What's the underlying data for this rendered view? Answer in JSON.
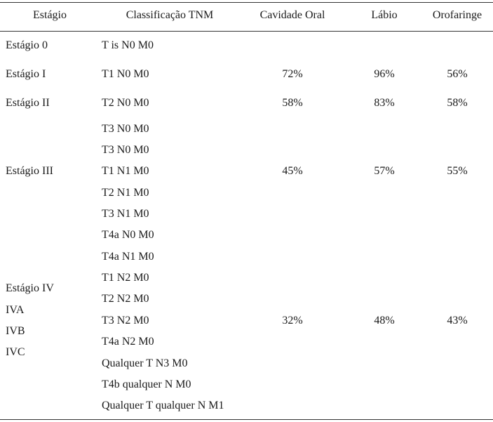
{
  "table": {
    "headers": {
      "stage": "Estágio",
      "tnm": "Classificação TNM",
      "oral_cavity": "Cavidade Oral",
      "lip": "Lábio",
      "oropharynx": "Orofaringe"
    },
    "stage_labels": {
      "s0": "Estágio 0",
      "s1": "Estágio I",
      "s2": "Estágio II",
      "s3": "Estágio III",
      "s4": "Estágio IV",
      "s4a": "IVA",
      "s4b": "IVB",
      "s4c": "IVC"
    },
    "tnm": {
      "s0": [
        "T is N0 M0"
      ],
      "s1": [
        "T1 N0 M0"
      ],
      "s2": [
        "T2 N0 M0"
      ],
      "s3": [
        "T3 N0 M0",
        "T3 N0 M0",
        "T1 N1 M0",
        "T2 N1 M0",
        "T3 N1 M0",
        "T4a N0 M0",
        "T4a N1 M0"
      ],
      "s4": [
        "T1 N2 M0",
        "T2 N2 M0",
        "T3 N2 M0",
        "T4a N2 M0",
        "Qualquer T N3 M0",
        "T4b qualquer N M0",
        "Qualquer T qualquer N M1"
      ]
    },
    "survival": {
      "s1": {
        "oral": "72%",
        "lip": "96%",
        "oro": "56%"
      },
      "s2": {
        "oral": "58%",
        "lip": "83%",
        "oro": "58%"
      },
      "s3": {
        "oral": "45%",
        "lip": "57%",
        "oro": "55%"
      },
      "s4": {
        "oral": "32%",
        "lip": "48%",
        "oro": "43%"
      }
    }
  }
}
